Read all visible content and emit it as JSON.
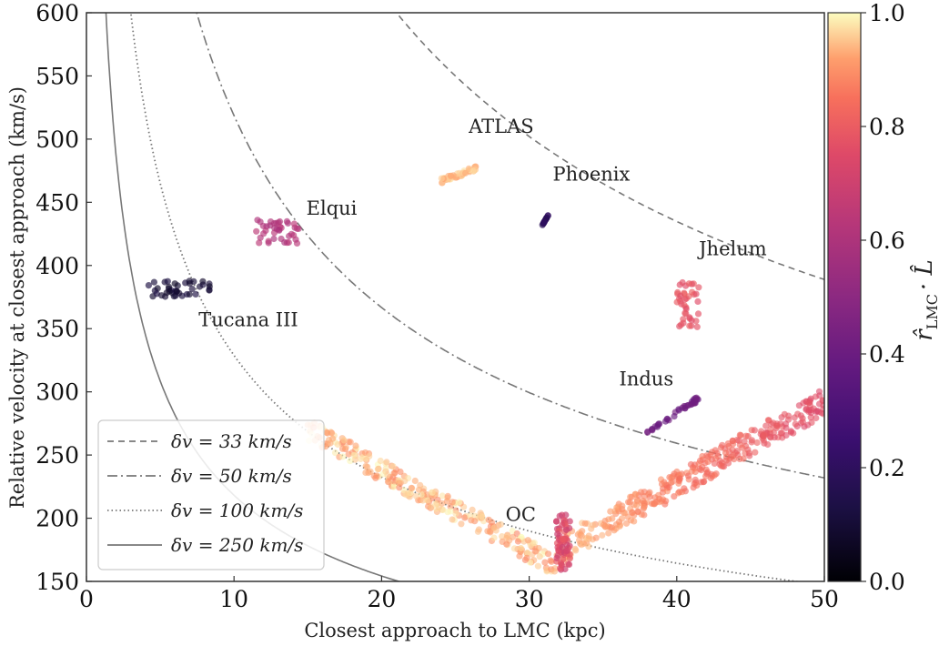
{
  "chart_data": {
    "type": "scatter",
    "xlabel": "Closest approach to LMC (kpc)",
    "ylabel": "Relative velocity at closest approach (km/s)",
    "xlim": [
      0,
      50
    ],
    "ylim": [
      150,
      600
    ],
    "xticks": [
      "0",
      "10",
      "20",
      "30",
      "40",
      "50"
    ],
    "yticks": [
      "150",
      "200",
      "250",
      "300",
      "350",
      "400",
      "450",
      "500",
      "550",
      "600"
    ],
    "grid": false,
    "legend_position": "lower-left",
    "colorbar": {
      "label": "r̂_LMC · L̂",
      "label_main": "r̂",
      "label_sub": "LMC",
      "label_rest": "· L̂",
      "range": [
        0.0,
        1.0
      ],
      "ticks": [
        "0.0",
        "0.2",
        "0.4",
        "0.6",
        "0.8",
        "1.0"
      ],
      "colormap": "magma"
    },
    "curves": [
      {
        "name": "δv = 33 km/s",
        "dv": 33,
        "style": "dashed"
      },
      {
        "name": "δv = 50 km/s",
        "dv": 50,
        "style": "dashdot"
      },
      {
        "name": "δv = 100 km/s",
        "dv": 100,
        "style": "dotted"
      },
      {
        "name": "δv = 250 km/s",
        "dv": 250,
        "style": "solid"
      }
    ],
    "annotations": [
      {
        "text": "ATLAS",
        "x": 25.9,
        "y": 505
      },
      {
        "text": "Phoenix",
        "x": 31.6,
        "y": 467
      },
      {
        "text": "Elqui",
        "x": 14.9,
        "y": 440
      },
      {
        "text": "Jhelum",
        "x": 41.5,
        "y": 408
      },
      {
        "text": "Tucana III",
        "x": 7.6,
        "y": 352
      },
      {
        "text": "Indus",
        "x": 36.1,
        "y": 305
      },
      {
        "text": "OC",
        "x": 28.4,
        "y": 198
      }
    ],
    "series": [
      {
        "name": "ATLAS",
        "x_range": [
          24,
          26.5
        ],
        "y_range": [
          467,
          477
        ],
        "color_value": 0.95
      },
      {
        "name": "Phoenix",
        "x_range": [
          30.9,
          31.3
        ],
        "y_range": [
          432,
          440
        ],
        "color_value": 0.2
      },
      {
        "name": "Elqui",
        "x_range": [
          11.5,
          14.5
        ],
        "y_range": [
          417,
          437
        ],
        "color_value": 0.62
      },
      {
        "name": "Jhelum",
        "x_range": [
          40,
          41.5
        ],
        "y_range": [
          350,
          388
        ],
        "color_value": 0.78
      },
      {
        "name": "Tucana III",
        "x_range": [
          4.2,
          8.5
        ],
        "y_range": [
          375,
          388
        ],
        "color_value": 0.1
      },
      {
        "name": "Indus",
        "x_range": [
          38,
          41.5
        ],
        "y_range": [
          268,
          295
        ],
        "color_value": 0.4
      },
      {
        "name": "OC",
        "x_range": [
          15,
          50
        ],
        "y_range": [
          158,
          310
        ],
        "color_value_range": [
          0.6,
          1.0
        ]
      }
    ]
  }
}
